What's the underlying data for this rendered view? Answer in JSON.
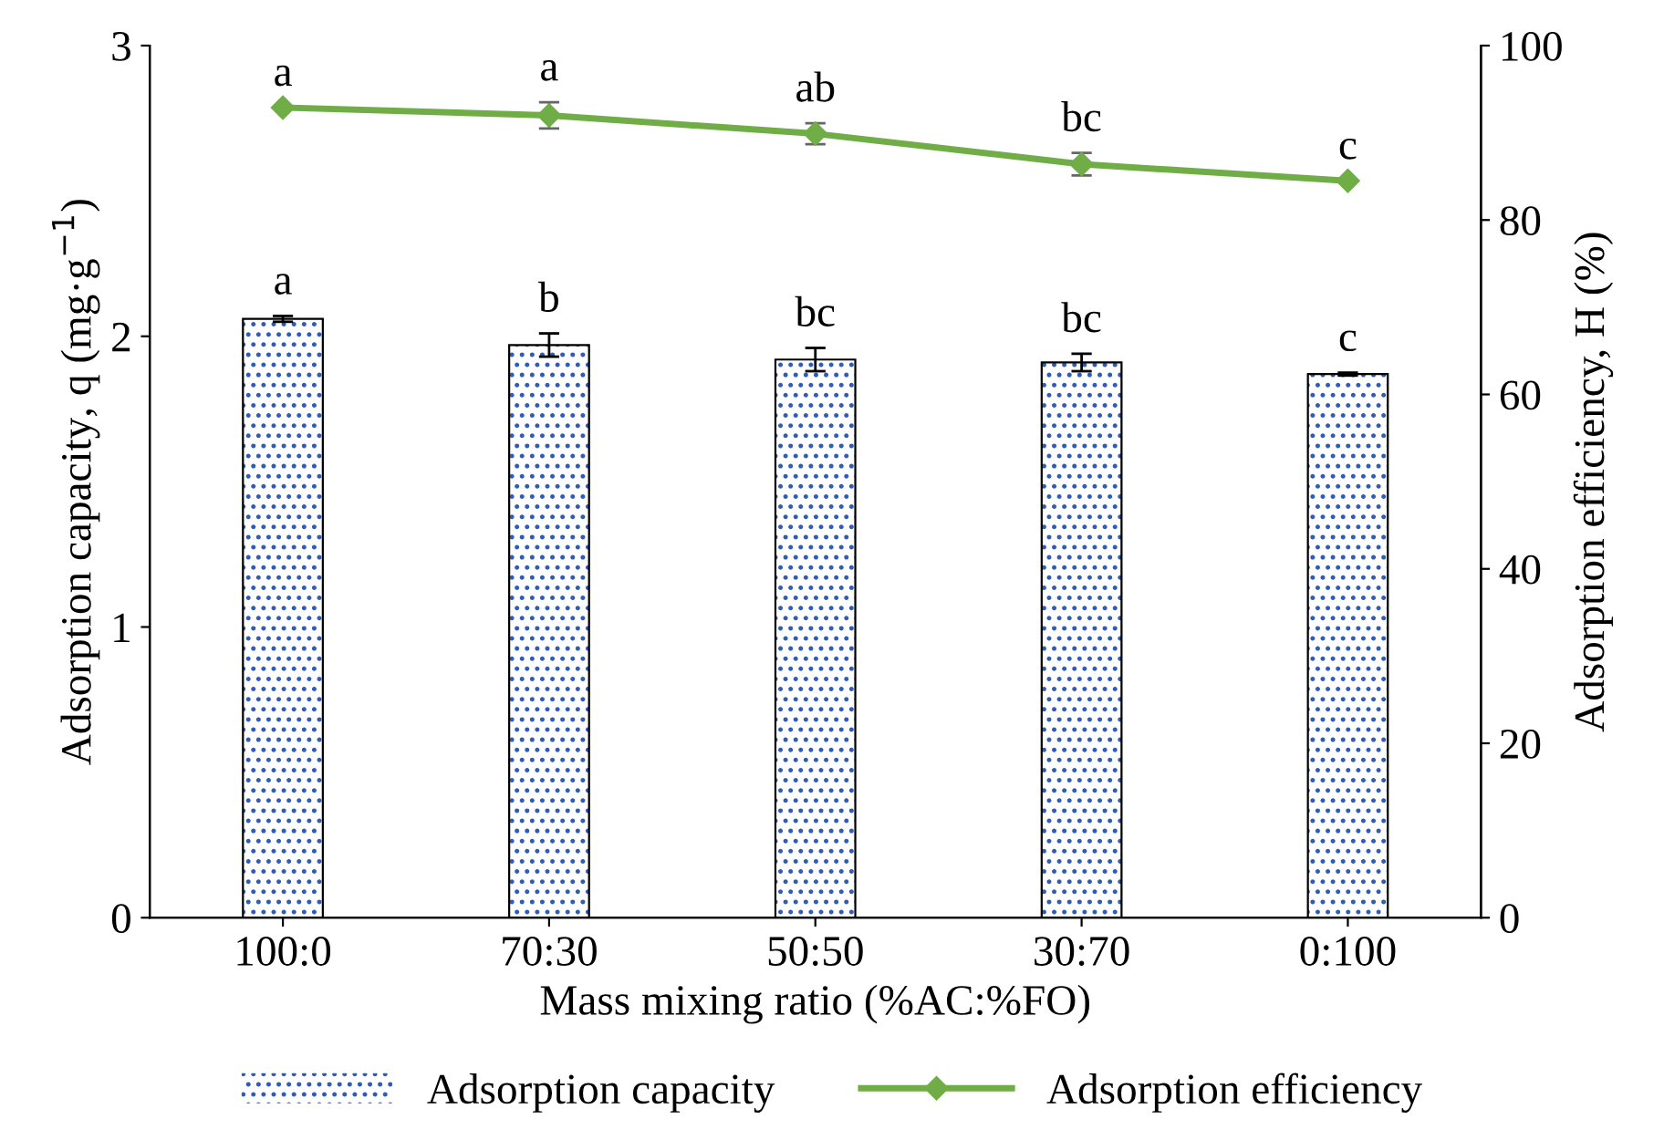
{
  "chart_data": {
    "type": "bar",
    "xlabel": "Mass mixing ratio (%AC:%FO)",
    "ylabel": "Adsorption capacity, q (mg·g$^{−1}$)",
    "y2label": "Adsorption efficiency, H (%)",
    "categories": [
      "100:0",
      "70:30",
      "50:50",
      "30:70",
      "0:100"
    ],
    "series": [
      {
        "name": "Adsorption capacity",
        "color": "#2e5cb8",
        "values": [
          2.06,
          1.97,
          1.92,
          1.91,
          1.87
        ],
        "errors": [
          0.01,
          0.04,
          0.04,
          0.03,
          0.005
        ],
        "value_labels": [
          "a",
          "b",
          "bc",
          "bc",
          "c"
        ]
      },
      {
        "name": "Adsorption efficiency",
        "type": "line",
        "axis": "y2",
        "color": "#70ad47",
        "marker": "diamond",
        "values": [
          92.9,
          92.0,
          89.9,
          86.4,
          84.5
        ],
        "errors": [
          null,
          1.5,
          1.2,
          1.3,
          null
        ],
        "value_labels": [
          "a",
          "a",
          "ab",
          "bc",
          "c"
        ]
      }
    ],
    "ylim": [
      0,
      3
    ],
    "yticks": [
      0,
      1,
      2,
      3
    ],
    "y2lim": [
      0,
      100
    ],
    "y2ticks": [
      0,
      20,
      40,
      60,
      80,
      100
    ],
    "grid": false,
    "legend": "bottom"
  }
}
